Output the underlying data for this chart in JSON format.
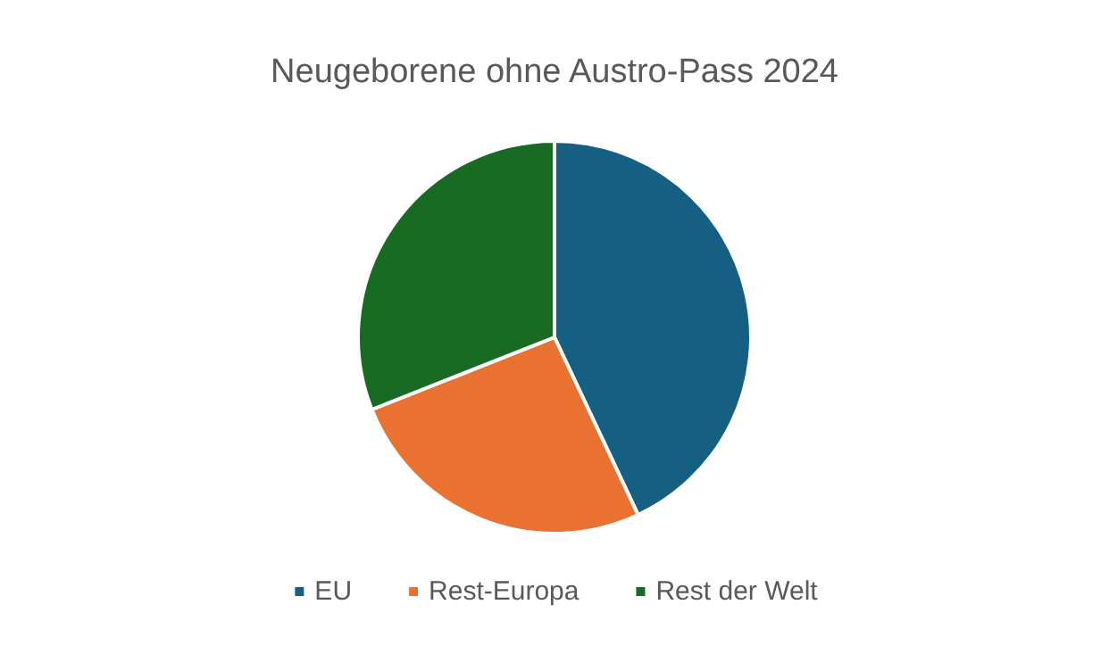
{
  "chart_data": {
    "type": "pie",
    "title": "Neugeborene ohne Austro-Pass 2024",
    "categories": [
      "EU",
      "Rest-Europa",
      "Rest der Welt"
    ],
    "values": [
      43,
      26,
      31
    ],
    "colors": [
      "#156082",
      "#e97132",
      "#196b24"
    ],
    "legend": "bottom"
  }
}
